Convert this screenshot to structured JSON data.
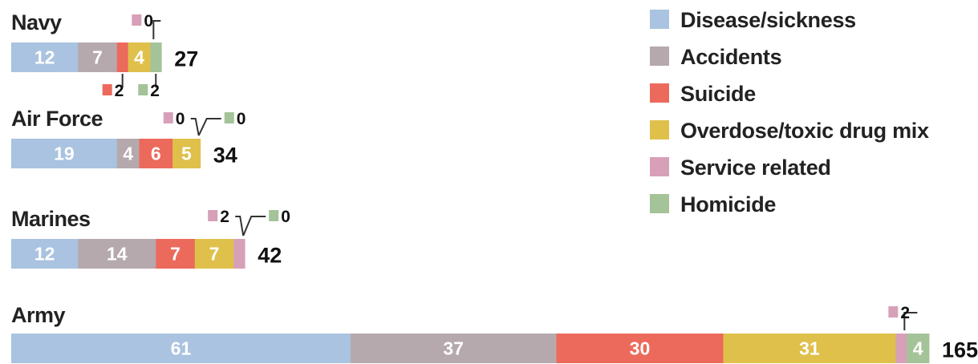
{
  "colors": {
    "disease": "#a9c3e0",
    "accidents": "#b5a9ae",
    "suicide": "#ec6a5c",
    "overdose": "#dfc04b",
    "service": "#d7a0b8",
    "homicide": "#a4c398"
  },
  "chart_data": {
    "type": "bar",
    "orientation": "horizontal",
    "stacked": true,
    "categories": [
      "Navy",
      "Air Force",
      "Marines",
      "Army"
    ],
    "series": [
      {
        "name": "Disease/sickness",
        "key": "disease",
        "values": [
          12,
          19,
          12,
          61
        ]
      },
      {
        "name": "Accidents",
        "key": "accidents",
        "values": [
          7,
          4,
          14,
          37
        ]
      },
      {
        "name": "Suicide",
        "key": "suicide",
        "values": [
          2,
          6,
          7,
          30
        ]
      },
      {
        "name": "Overdose/toxic drug mix",
        "key": "overdose",
        "values": [
          4,
          5,
          7,
          31
        ]
      },
      {
        "name": "Service related",
        "key": "service",
        "values": [
          0,
          0,
          2,
          2
        ]
      },
      {
        "name": "Homicide",
        "key": "homicide",
        "values": [
          2,
          0,
          0,
          4
        ]
      }
    ],
    "totals": [
      "27",
      "34",
      "42",
      "165"
    ],
    "segment_labels": [
      [
        "12",
        "7",
        "",
        "4",
        "",
        ""
      ],
      [
        "19",
        "4",
        "6",
        "5",
        "",
        ""
      ],
      [
        "12",
        "14",
        "7",
        "7",
        "",
        ""
      ],
      [
        "61",
        "37",
        "30",
        "31",
        "",
        "4"
      ]
    ],
    "callouts": [
      [
        {
          "key": "service",
          "text": "0"
        },
        {
          "key": "suicide",
          "text": "2"
        },
        {
          "key": "homicide",
          "text": "2"
        }
      ],
      [
        {
          "key": "service",
          "text": "0"
        },
        {
          "key": "homicide",
          "text": "0"
        }
      ],
      [
        {
          "key": "service",
          "text": "2"
        },
        {
          "key": "homicide",
          "text": "0"
        }
      ],
      [
        {
          "key": "service",
          "text": "2"
        }
      ]
    ],
    "legend_position": "top-right",
    "grid": false
  }
}
